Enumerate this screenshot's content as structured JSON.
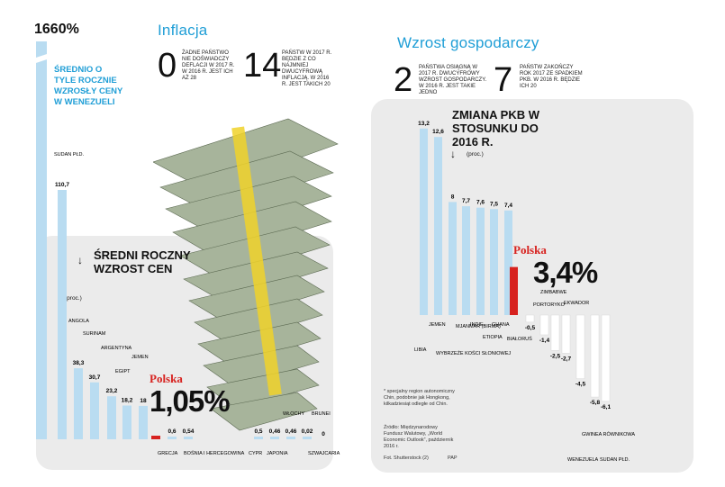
{
  "colors": {
    "bar": "#b9dcf1",
    "accent": "#1f9ed6",
    "highlight": "#d7221f",
    "panel": "#ebebeb"
  },
  "top_left": {
    "value": "1660%",
    "caption": "ŚREDNIO O TYLE ROCZNIE WZROSŁY CENY W WENEZUELI"
  },
  "inflacja": {
    "title": "Inflacja",
    "fact1": {
      "value": "0",
      "text": "ŻADNE PAŃSTWO NIE DOŚWIADCZY DEFLACJI W 2017 R. W 2016 R. JEST ICH AŻ 28"
    },
    "fact2": {
      "value": "14",
      "text": "PAŃSTW W 2017 R. BĘDZIE Z CO NAJMNIEJ DWUCYFROWĄ INFLACJĄ. W 2016 R. JEST TAKICH 20"
    }
  },
  "wzrost": {
    "title": "Wzrost gospodarczy",
    "fact1": {
      "value": "2",
      "text": "PAŃSTWA OSIĄGNĄ W 2017 R. DWUCYFROWY WZROST GOSPODARCZY. W 2016 R. JEST TAKIE JEDNO"
    },
    "fact2": {
      "value": "7",
      "text": "PAŃSTW ZAKOŃCZY ROK 2017 ZE SPADKIEM PKB. W 2016 R. BĘDZIE ICH 20"
    }
  },
  "inflation_chart": {
    "title": "ŚREDNI ROCZNY WZROST CEN",
    "unit": "(proc.)",
    "polska_label": "Polska",
    "polska_value": "1,05%"
  },
  "gdp_chart": {
    "title": "ZMIANA PKB W STOSUNKU DO 2016 R.",
    "unit": "(proc.)",
    "polska_label": "Polska",
    "polska_value": "3,4%",
    "footnote": "* specjalny region autonomiczny Chin, podobnie jak Hongkong, kilkadziesiąt odległe od Chin.",
    "source": "Źródło: Międzynarodowy Fundusz Walutowy, „World Economic Outlook”, październik 2016 r.",
    "credit": "Fot. Shutterstock (2)",
    "credit2": "PAP"
  },
  "chart_data": [
    {
      "type": "bar",
      "title": "ŚREDNI ROCZNY WZROST CEN",
      "ylabel": "(proc.)",
      "categories": [
        "WENEZUELA",
        "SUDAN PŁD.",
        "ANGOLA",
        "SURINAM",
        "ARGENTYNA",
        "EGIPT",
        "JEMEN",
        "GRECJA",
        "BOŚNIA I HERCEGOWINA",
        "CYPR",
        "JAPONIA",
        "WŁOCHY",
        "SZWAJCARIA",
        "BRUNEI"
      ],
      "values": [
        1660,
        110.7,
        38.3,
        30.7,
        23.2,
        18.2,
        18,
        0.6,
        0.54,
        0.5,
        0.46,
        0.46,
        0.02,
        0
      ],
      "value_labels": [
        "1660%",
        "110,7",
        "38,3",
        "30,7",
        "23,2",
        "18,2",
        "18",
        "0,6",
        "0,54",
        "0,5",
        "0,46",
        "0,46",
        "0,02",
        "0"
      ],
      "highlight": "POLSKA 1,05%"
    },
    {
      "type": "bar",
      "title": "ZMIANA PKB W STOSUNKU DO 2016 R.",
      "ylabel": "(proc.)",
      "categories": [
        "LIBIA",
        "JEMEN",
        "WYBRZEŻE KOŚCI SŁONIOWEJ",
        "MJANMAR (BIRMA)",
        "INDIE",
        "ETIOPIA",
        "GHANA",
        "POLSKA",
        "BIAŁORUŚ",
        "ZIMBABWE",
        "PORTORYKO",
        "EKWADOR",
        "GWINEA RÓWNIKOWA",
        "WENEZUELA",
        "SUDAN PŁD."
      ],
      "values": [
        13.2,
        12.6,
        8,
        7.7,
        7.6,
        7.5,
        7.4,
        3.4,
        -0.5,
        -1.4,
        -2.5,
        -2.7,
        -4.5,
        -5.8,
        -6.1
      ],
      "value_labels": [
        "13,2",
        "12,6",
        "8",
        "7,7",
        "7,6",
        "7,5",
        "7,4",
        "3,4%",
        "-0,5",
        "-1,4",
        "-2,5",
        "-2,7",
        "-4,5",
        "-5,8",
        "-6,1"
      ]
    }
  ]
}
